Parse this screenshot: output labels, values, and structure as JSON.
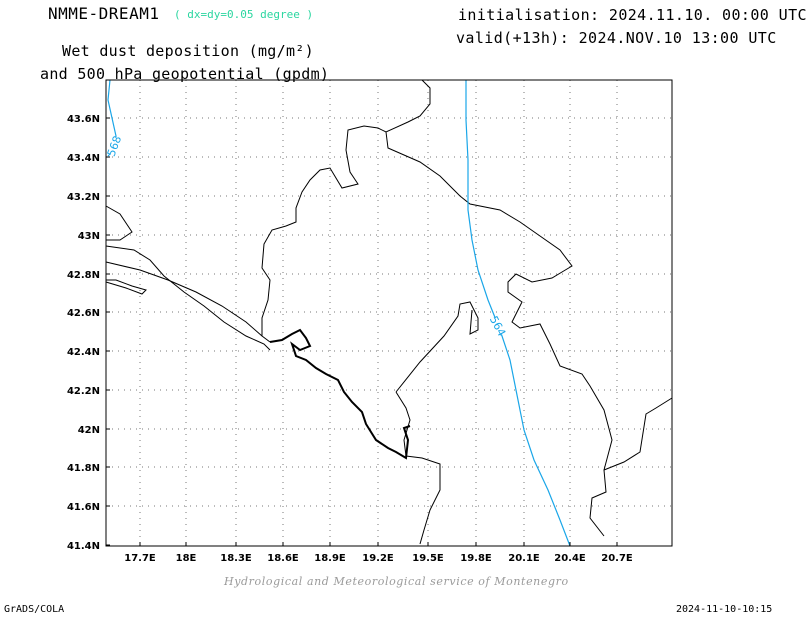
{
  "header": {
    "model": "NMME-DREAM1",
    "resolution": "( dx=dy=0.05 degree )",
    "init": "initialisation: 2024.11.10. 00:00 UTC",
    "valid": "valid(+13h): 2024.NOV.10 13:00 UTC",
    "title_line1": "Wet dust deposition (mg/m²)",
    "title_line2": "and 500 hPa geopotential (gpdm)"
  },
  "map": {
    "lat_labels": [
      "43.6N",
      "43.4N",
      "43.2N",
      "43N",
      "42.8N",
      "42.6N",
      "42.4N",
      "42.2N",
      "42N",
      "41.8N",
      "41.6N",
      "41.4N"
    ],
    "lon_labels": [
      "17.7E",
      "18E",
      "18.3E",
      "18.6E",
      "18.9E",
      "19.2E",
      "19.5E",
      "19.8E",
      "20.1E",
      "20.4E",
      "20.7E"
    ],
    "contours": [
      {
        "label": "568",
        "color": "#1aa6e8"
      },
      {
        "label": "564",
        "color": "#1aa6e8"
      }
    ]
  },
  "footer": {
    "credit": "Hydrological and Meteorological service of Montenegro",
    "left": "GrADS/COLA",
    "right": "2024-11-10-10:15"
  }
}
